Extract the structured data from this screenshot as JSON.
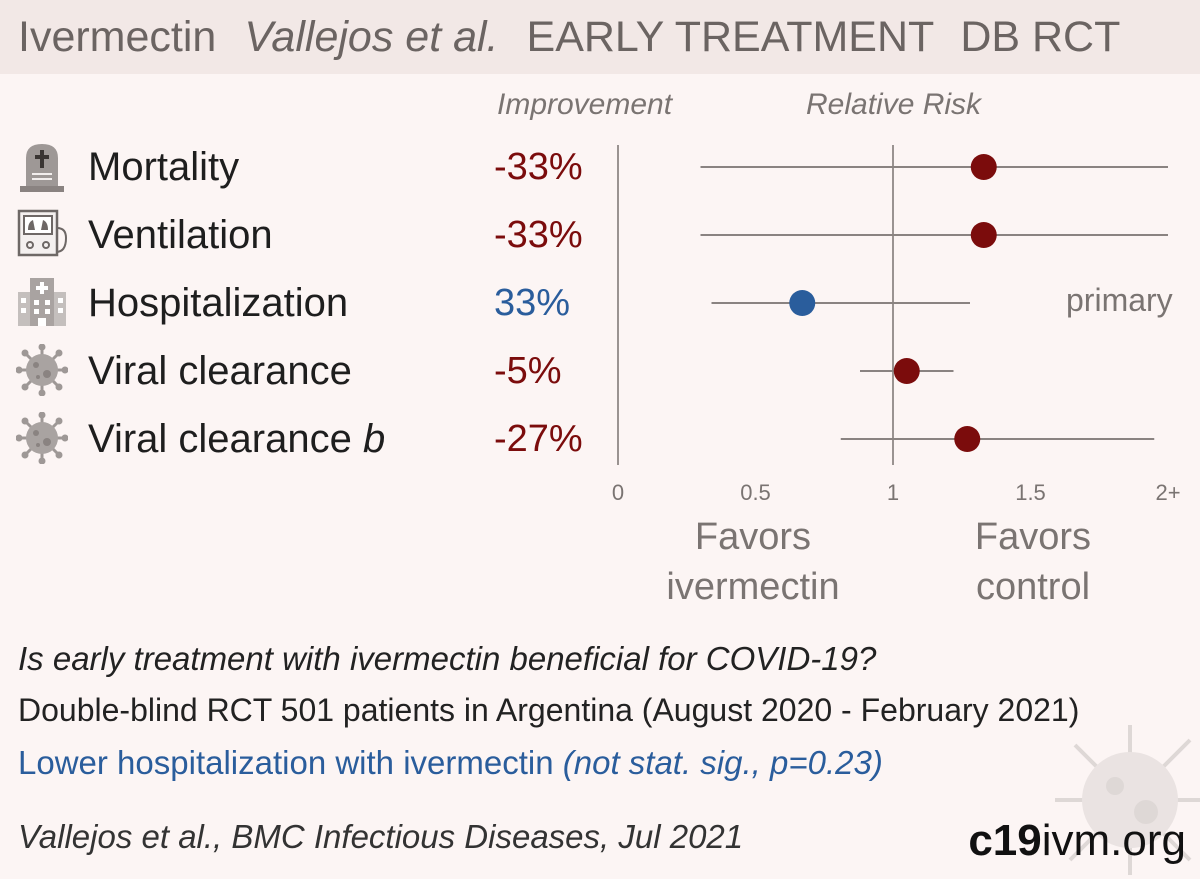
{
  "header": {
    "drug": "Ivermectin",
    "study": "Vallejos et al.",
    "treatment": "EARLY TREATMENT",
    "design": "DB RCT"
  },
  "columns": {
    "improvement": "Improvement",
    "relative_risk": "Relative Risk"
  },
  "rows": [
    {
      "label": "Mortality",
      "label_italic": "",
      "improvement": "-33%",
      "icon": "tombstone-icon"
    },
    {
      "label": "Ventilation",
      "label_italic": "",
      "improvement": "-33%",
      "icon": "ventilator-icon"
    },
    {
      "label": "Hospitalization",
      "label_italic": "",
      "improvement": "33%",
      "icon": "hospital-icon"
    },
    {
      "label": "Viral clearance",
      "label_italic": "",
      "improvement": "-5%",
      "icon": "virus-icon"
    },
    {
      "label": "Viral clearance ",
      "label_italic": "b",
      "improvement": "-27%",
      "icon": "virus-icon"
    }
  ],
  "primary_note": "primary",
  "favors": {
    "left": [
      "Favors",
      "ivermectin"
    ],
    "right": [
      "Favors",
      "control"
    ]
  },
  "footer": {
    "question": "Is early treatment with ivermectin beneficial for COVID-19?",
    "design": "Double-blind RCT 501 patients in Argentina (August 2020 - February 2021)",
    "result_main": "Lower hospitalization with ivermectin ",
    "result_italic": "(not stat. sig., p=0.23)",
    "citation": "Vallejos et al., BMC Infectious Diseases, Jul 2021",
    "site_bold": "c19",
    "site_rest": "ivm.org"
  },
  "colors": {
    "harm": "#7b0c0c",
    "benefit": "#2a5d9c",
    "line": "#8a8381",
    "axis": "#9a9391"
  },
  "chart_data": {
    "type": "forest",
    "xlabel": "Relative Risk",
    "xlim": [
      0,
      2
    ],
    "ticks": [
      {
        "value": 0,
        "label": "0"
      },
      {
        "value": 0.5,
        "label": "0.5"
      },
      {
        "value": 1,
        "label": "1"
      },
      {
        "value": 1.5,
        "label": "1.5"
      },
      {
        "value": 2,
        "label": "2+"
      }
    ],
    "reference_line": 1,
    "categories": [
      "Mortality",
      "Ventilation",
      "Hospitalization",
      "Viral clearance",
      "Viral clearance b"
    ],
    "series": [
      {
        "values": [
          1.33,
          1.33,
          0.67,
          1.05,
          1.27
        ],
        "ci_low": [
          0.3,
          0.3,
          0.34,
          0.88,
          0.81
        ],
        "ci_high": [
          2.0,
          2.0,
          1.28,
          1.22,
          1.95
        ],
        "direction": [
          "harm",
          "harm",
          "benefit",
          "harm",
          "harm"
        ]
      }
    ]
  }
}
